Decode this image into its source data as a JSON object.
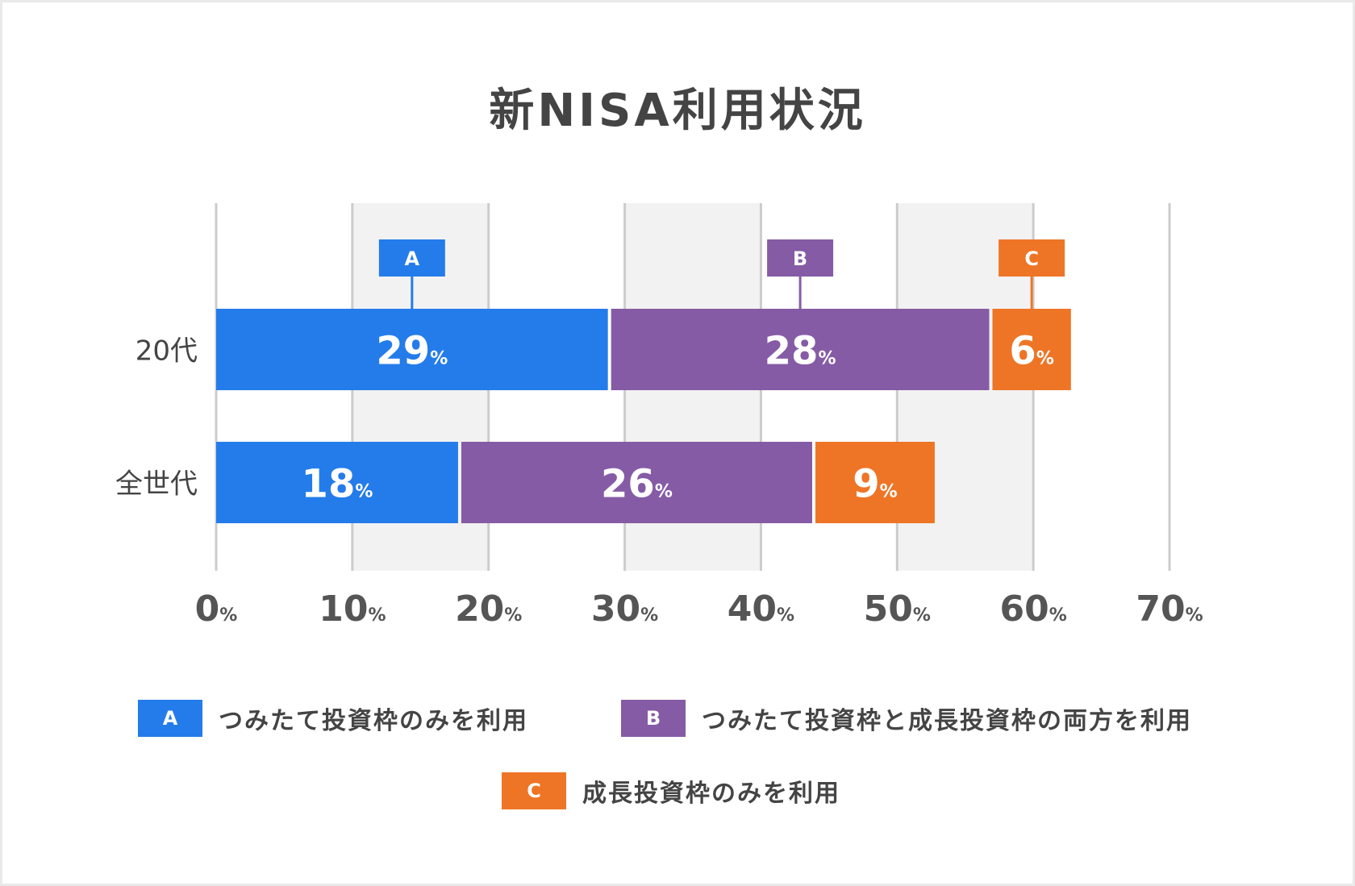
{
  "chart_data": {
    "type": "bar",
    "orientation": "horizontal",
    "stacked": true,
    "title": "新NISA利用状況",
    "categories": [
      "20代",
      "全世代"
    ],
    "series": [
      {
        "key": "A",
        "name": "つみたて投資枠のみを利用",
        "color": "#247cea",
        "values": [
          29,
          18
        ]
      },
      {
        "key": "B",
        "name": "つみたて投資枠と成長投資枠の両方を利用",
        "color": "#855ba6",
        "values": [
          28,
          26
        ]
      },
      {
        "key": "C",
        "name": "成長投資枠のみを利用",
        "color": "#ee7526",
        "values": [
          6,
          9
        ]
      }
    ],
    "xlim": [
      0,
      70
    ],
    "xticks": [
      0,
      10,
      20,
      30,
      40,
      50,
      60,
      70
    ],
    "unit": "%",
    "grid": true,
    "legend": "bottom",
    "callouts": [
      "A",
      "B",
      "C"
    ]
  }
}
